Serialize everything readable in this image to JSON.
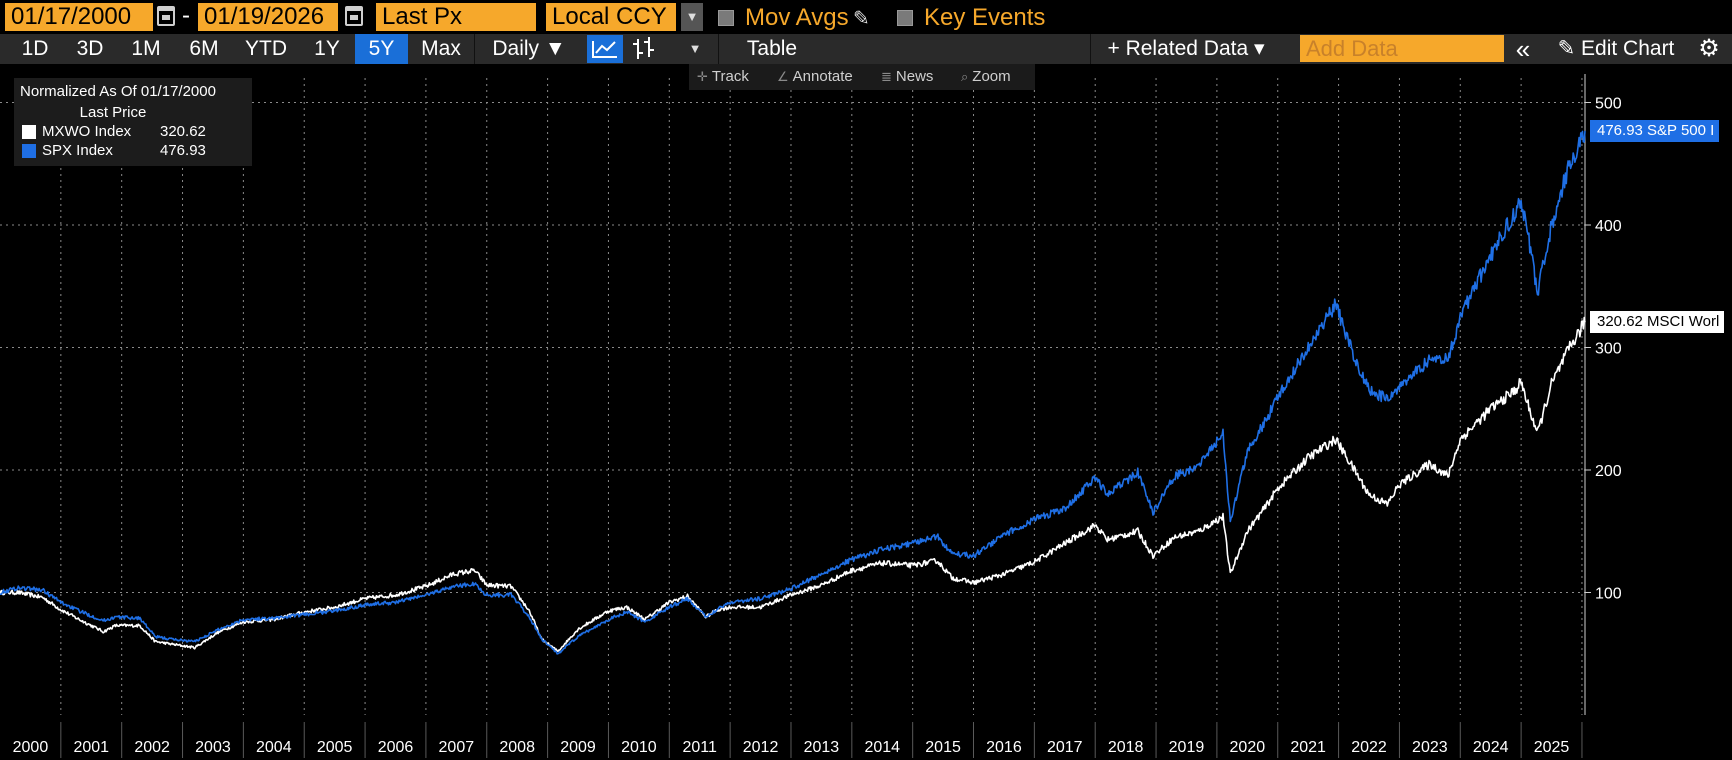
{
  "toolbar": {
    "start_date": "01/17/2000",
    "date_separator": "-",
    "end_date": "01/19/2026",
    "field": "Last Px",
    "currency": "Local CCY",
    "mov_avgs_label": "Mov Avgs",
    "key_events_label": "Key Events"
  },
  "periods": [
    "1D",
    "3D",
    "1M",
    "6M",
    "YTD",
    "1Y",
    "5Y",
    "Max"
  ],
  "active_period": "5Y",
  "frequency": "Daily ▼",
  "table_label": "Table",
  "related_data_label": "+ Related Data ▾",
  "add_data_placeholder": "Add Data",
  "collapse_label": "«",
  "edit_chart_label": "✎ Edit Chart",
  "settings_icon": "⚙",
  "float_toolbar": {
    "track": "Track",
    "annotate": "Annotate",
    "news": "News",
    "zoom": "Zoom"
  },
  "legend": {
    "title": "Normalized As Of 01/17/2000",
    "subtitle": "Last Price",
    "entries": [
      {
        "name": "MXWO Index",
        "value": "320.62",
        "color": "#ffffff"
      },
      {
        "name": "SPX Index",
        "value": "476.93",
        "color": "#1f6fe5"
      }
    ]
  },
  "end_labels": [
    {
      "text": "476.93 S&P 500 I",
      "value": 476.93,
      "bg": "#1f6fe5",
      "fg": "#ffffff"
    },
    {
      "text": "320.62 MSCI Worl",
      "value": 320.62,
      "bg": "#ffffff",
      "fg": "#000000"
    }
  ],
  "colors": {
    "accent": "#f6a82b",
    "blue": "#1f6fe5",
    "grid": "#8a8a8a"
  },
  "chart_data": {
    "type": "line",
    "title": "Normalized As Of 01/17/2000",
    "xlabel": "",
    "ylabel": "",
    "xlim": [
      2000.0,
      2026.05
    ],
    "ylim": [
      0,
      520
    ],
    "yticks": [
      100,
      200,
      300,
      400,
      500
    ],
    "xticks": [
      "2000",
      "2001",
      "2002",
      "2003",
      "2004",
      "2005",
      "2006",
      "2007",
      "2008",
      "2009",
      "2010",
      "2011",
      "2012",
      "2013",
      "2014",
      "2015",
      "2016",
      "2017",
      "2018",
      "2019",
      "2020",
      "2021",
      "2022",
      "2023",
      "2024",
      "2025"
    ],
    "grid": true,
    "series": [
      {
        "name": "SPX Index",
        "color": "#1f6fe5",
        "points": [
          [
            2000.0,
            100
          ],
          [
            2000.3,
            104
          ],
          [
            2000.7,
            102
          ],
          [
            2001.0,
            92
          ],
          [
            2001.3,
            85
          ],
          [
            2001.7,
            77
          ],
          [
            2001.9,
            80
          ],
          [
            2002.3,
            79
          ],
          [
            2002.55,
            64
          ],
          [
            2002.8,
            62
          ],
          [
            2003.2,
            60
          ],
          [
            2003.6,
            70
          ],
          [
            2004.0,
            78
          ],
          [
            2004.5,
            79
          ],
          [
            2005.0,
            82
          ],
          [
            2005.5,
            85
          ],
          [
            2006.0,
            90
          ],
          [
            2006.5,
            92
          ],
          [
            2007.0,
            98
          ],
          [
            2007.45,
            105
          ],
          [
            2007.8,
            107
          ],
          [
            2008.0,
            98
          ],
          [
            2008.4,
            98
          ],
          [
            2008.7,
            80
          ],
          [
            2008.9,
            62
          ],
          [
            2009.17,
            50
          ],
          [
            2009.5,
            64
          ],
          [
            2010.0,
            78
          ],
          [
            2010.3,
            84
          ],
          [
            2010.6,
            76
          ],
          [
            2011.0,
            88
          ],
          [
            2011.3,
            95
          ],
          [
            2011.6,
            80
          ],
          [
            2011.8,
            87
          ],
          [
            2012.0,
            92
          ],
          [
            2012.5,
            95
          ],
          [
            2013.0,
            103
          ],
          [
            2013.5,
            115
          ],
          [
            2014.0,
            127
          ],
          [
            2014.5,
            135
          ],
          [
            2015.0,
            140
          ],
          [
            2015.4,
            146
          ],
          [
            2015.65,
            132
          ],
          [
            2016.0,
            130
          ],
          [
            2016.5,
            147
          ],
          [
            2017.0,
            160
          ],
          [
            2017.5,
            168
          ],
          [
            2018.0,
            194
          ],
          [
            2018.2,
            180
          ],
          [
            2018.7,
            198
          ],
          [
            2018.95,
            165
          ],
          [
            2019.3,
            195
          ],
          [
            2019.7,
            203
          ],
          [
            2020.1,
            230
          ],
          [
            2020.22,
            158
          ],
          [
            2020.5,
            215
          ],
          [
            2020.8,
            240
          ],
          [
            2021.0,
            260
          ],
          [
            2021.5,
            300
          ],
          [
            2021.95,
            335
          ],
          [
            2022.2,
            300
          ],
          [
            2022.5,
            265
          ],
          [
            2022.8,
            258
          ],
          [
            2023.0,
            268
          ],
          [
            2023.5,
            290
          ],
          [
            2023.8,
            290
          ],
          [
            2024.0,
            325
          ],
          [
            2024.5,
            375
          ],
          [
            2024.9,
            410
          ],
          [
            2025.0,
            420
          ],
          [
            2025.1,
            395
          ],
          [
            2025.27,
            345
          ],
          [
            2025.5,
            400
          ],
          [
            2025.8,
            450
          ],
          [
            2026.05,
            476.93
          ]
        ]
      },
      {
        "name": "MXWO Index",
        "color": "#ffffff",
        "points": [
          [
            2000.0,
            100
          ],
          [
            2000.3,
            100
          ],
          [
            2000.7,
            96
          ],
          [
            2001.0,
            86
          ],
          [
            2001.3,
            78
          ],
          [
            2001.7,
            68
          ],
          [
            2001.9,
            73
          ],
          [
            2002.3,
            73
          ],
          [
            2002.55,
            60
          ],
          [
            2002.8,
            58
          ],
          [
            2003.2,
            55
          ],
          [
            2003.6,
            68
          ],
          [
            2004.0,
            76
          ],
          [
            2004.5,
            78
          ],
          [
            2005.0,
            84
          ],
          [
            2005.5,
            88
          ],
          [
            2006.0,
            95
          ],
          [
            2006.5,
            98
          ],
          [
            2007.0,
            105
          ],
          [
            2007.45,
            115
          ],
          [
            2007.8,
            118
          ],
          [
            2008.0,
            106
          ],
          [
            2008.4,
            105
          ],
          [
            2008.7,
            85
          ],
          [
            2008.9,
            62
          ],
          [
            2009.17,
            52
          ],
          [
            2009.5,
            70
          ],
          [
            2010.0,
            85
          ],
          [
            2010.3,
            88
          ],
          [
            2010.6,
            78
          ],
          [
            2011.0,
            92
          ],
          [
            2011.3,
            97
          ],
          [
            2011.6,
            80
          ],
          [
            2011.8,
            86
          ],
          [
            2012.0,
            88
          ],
          [
            2012.5,
            88
          ],
          [
            2013.0,
            98
          ],
          [
            2013.5,
            106
          ],
          [
            2014.0,
            118
          ],
          [
            2014.5,
            124
          ],
          [
            2015.0,
            122
          ],
          [
            2015.4,
            126
          ],
          [
            2015.65,
            112
          ],
          [
            2016.0,
            108
          ],
          [
            2016.5,
            115
          ],
          [
            2017.0,
            125
          ],
          [
            2017.5,
            140
          ],
          [
            2018.0,
            155
          ],
          [
            2018.2,
            143
          ],
          [
            2018.7,
            150
          ],
          [
            2018.95,
            130
          ],
          [
            2019.3,
            145
          ],
          [
            2019.7,
            150
          ],
          [
            2020.1,
            162
          ],
          [
            2020.22,
            115
          ],
          [
            2020.5,
            150
          ],
          [
            2020.8,
            170
          ],
          [
            2021.0,
            185
          ],
          [
            2021.5,
            210
          ],
          [
            2021.95,
            225
          ],
          [
            2022.2,
            205
          ],
          [
            2022.5,
            180
          ],
          [
            2022.8,
            172
          ],
          [
            2023.0,
            188
          ],
          [
            2023.5,
            205
          ],
          [
            2023.8,
            195
          ],
          [
            2024.0,
            225
          ],
          [
            2024.5,
            250
          ],
          [
            2024.9,
            265
          ],
          [
            2025.0,
            272
          ],
          [
            2025.1,
            255
          ],
          [
            2025.27,
            230
          ],
          [
            2025.5,
            270
          ],
          [
            2025.8,
            300
          ],
          [
            2026.05,
            320.62
          ]
        ]
      }
    ]
  }
}
